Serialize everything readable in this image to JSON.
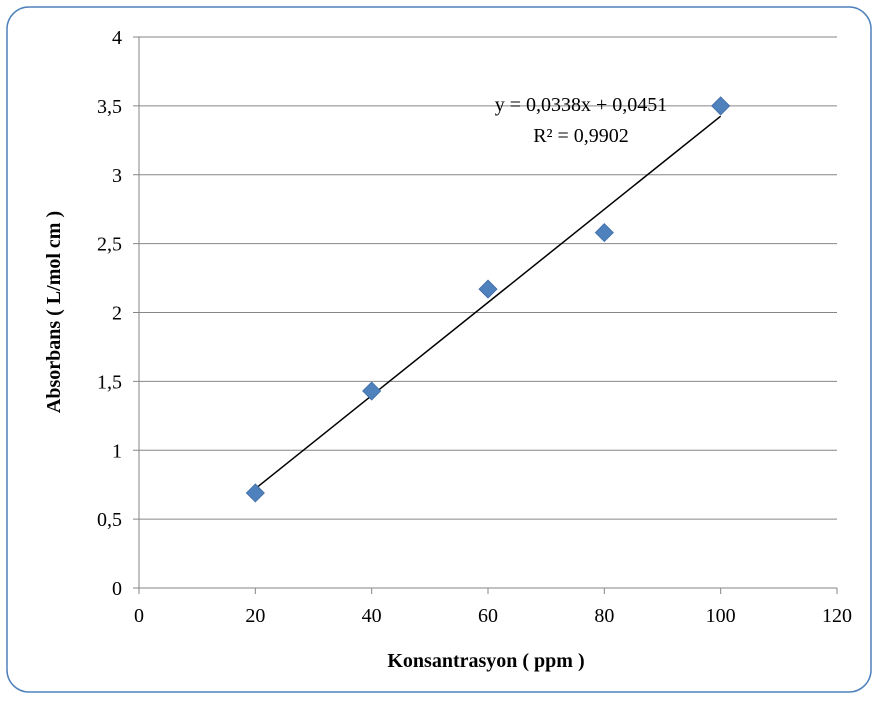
{
  "chart_data": {
    "type": "scatter",
    "title": "",
    "xlabel": "Konsantrasyon ( ppm )",
    "ylabel": "Absorbans ( L/mol cm )",
    "xlim": [
      0,
      120
    ],
    "ylim": [
      0,
      4
    ],
    "x_ticks": [
      "0",
      "20",
      "40",
      "60",
      "80",
      "100",
      "120"
    ],
    "y_ticks": [
      "0",
      "0,5",
      "1",
      "1,5",
      "2",
      "2,5",
      "3",
      "3,5",
      "4"
    ],
    "grid": "horizontal",
    "legend": "none",
    "series": [
      {
        "x": [
          20,
          40,
          60,
          80,
          100
        ],
        "y": [
          0.69,
          1.43,
          2.17,
          2.58,
          3.5
        ],
        "marker": "diamond",
        "color": "#4F81BD"
      }
    ],
    "trendline": {
      "type": "linear",
      "slope": 0.0338,
      "intercept": 0.0451,
      "x_range": [
        20,
        100
      ],
      "color": "#000000",
      "equation_label": "y = 0,0338x + 0,0451",
      "r2_label": "R² = 0,9902"
    },
    "frame_border_color": "#4F81BD"
  }
}
